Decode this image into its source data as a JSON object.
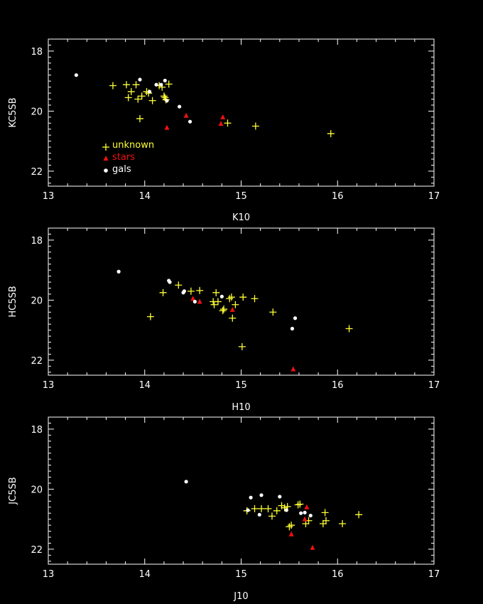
{
  "colors": {
    "background": "#000000",
    "axes": "#ffffff",
    "unknown": "#ffff33",
    "stars": "#ee1111",
    "gals": "#ffffff"
  },
  "legend": {
    "unknown": "unknown",
    "stars": "stars",
    "gals": "gals",
    "placement": "lower-left of top panel"
  },
  "chart_data": [
    {
      "type": "scatter",
      "xlabel": "K10",
      "ylabel": "KC5SB",
      "xlim": [
        13,
        17
      ],
      "ylim": [
        22.5,
        17.6
      ],
      "xticks": [
        "13",
        "14",
        "15",
        "16",
        "17"
      ],
      "yticks": [
        "18",
        "20",
        "22"
      ],
      "y_inverted": true,
      "grid": false,
      "series": [
        {
          "name": "unknown",
          "marker": "plus",
          "points": [
            [
              13.67,
              19.15
            ],
            [
              13.81,
              19.12
            ],
            [
              13.83,
              19.55
            ],
            [
              13.86,
              19.35
            ],
            [
              13.91,
              19.12
            ],
            [
              13.93,
              19.6
            ],
            [
              13.95,
              20.25
            ],
            [
              13.97,
              19.5
            ],
            [
              14.02,
              19.35
            ],
            [
              14.04,
              19.4
            ],
            [
              14.08,
              19.65
            ],
            [
              14.15,
              19.15
            ],
            [
              14.18,
              19.2
            ],
            [
              14.2,
              19.5
            ],
            [
              14.21,
              19.55
            ],
            [
              14.22,
              19.62
            ],
            [
              14.25,
              19.1
            ],
            [
              14.86,
              20.4
            ],
            [
              15.15,
              20.5
            ],
            [
              15.93,
              20.75
            ]
          ]
        },
        {
          "name": "stars",
          "marker": "triangle",
          "points": [
            [
              14.23,
              20.55
            ],
            [
              14.43,
              20.15
            ],
            [
              14.79,
              20.42
            ],
            [
              14.81,
              20.2
            ]
          ]
        },
        {
          "name": "gals",
          "marker": "dot",
          "points": [
            [
              13.29,
              18.8
            ],
            [
              13.95,
              18.95
            ],
            [
              14.05,
              19.35
            ],
            [
              14.12,
              19.12
            ],
            [
              14.17,
              19.12
            ],
            [
              14.21,
              18.98
            ],
            [
              14.23,
              19.65
            ],
            [
              14.36,
              19.85
            ],
            [
              14.47,
              20.35
            ]
          ]
        }
      ]
    },
    {
      "type": "scatter",
      "xlabel": "H10",
      "ylabel": "HC5SB",
      "xlim": [
        13,
        17
      ],
      "ylim": [
        22.5,
        17.6
      ],
      "xticks": [
        "13",
        "14",
        "15",
        "16",
        "17"
      ],
      "yticks": [
        "18",
        "20",
        "22"
      ],
      "y_inverted": true,
      "grid": false,
      "series": [
        {
          "name": "unknown",
          "marker": "plus",
          "points": [
            [
              14.06,
              20.55
            ],
            [
              14.19,
              19.75
            ],
            [
              14.35,
              19.5
            ],
            [
              14.48,
              19.7
            ],
            [
              14.57,
              19.68
            ],
            [
              14.71,
              20.05
            ],
            [
              14.72,
              20.15
            ],
            [
              14.74,
              19.75
            ],
            [
              14.76,
              20.05
            ],
            [
              14.81,
              20.35
            ],
            [
              14.82,
              20.3
            ],
            [
              14.88,
              19.95
            ],
            [
              14.9,
              19.9
            ],
            [
              14.91,
              20.6
            ],
            [
              14.94,
              20.15
            ],
            [
              15.02,
              19.9
            ],
            [
              15.01,
              21.55
            ],
            [
              15.14,
              19.95
            ],
            [
              15.33,
              20.4
            ],
            [
              16.12,
              20.95
            ]
          ]
        },
        {
          "name": "stars",
          "marker": "triangle",
          "points": [
            [
              14.5,
              19.95
            ],
            [
              14.57,
              20.05
            ],
            [
              14.91,
              20.32
            ],
            [
              15.54,
              22.3
            ]
          ]
        },
        {
          "name": "gals",
          "marker": "dot",
          "points": [
            [
              13.73,
              19.05
            ],
            [
              14.25,
              19.35
            ],
            [
              14.26,
              19.4
            ],
            [
              14.4,
              19.75
            ],
            [
              14.41,
              19.7
            ],
            [
              14.52,
              20.05
            ],
            [
              14.8,
              19.88
            ],
            [
              15.53,
              20.95
            ],
            [
              15.56,
              20.6
            ]
          ]
        }
      ]
    },
    {
      "type": "scatter",
      "xlabel": "J10",
      "ylabel": "JC5SB",
      "xlim": [
        13,
        17
      ],
      "ylim": [
        22.5,
        17.6
      ],
      "xticks": [
        "13",
        "14",
        "15",
        "16",
        "17"
      ],
      "yticks": [
        "18",
        "20",
        "22"
      ],
      "y_inverted": true,
      "grid": false,
      "series": [
        {
          "name": "unknown",
          "marker": "plus",
          "points": [
            [
              15.06,
              20.72
            ],
            [
              15.14,
              20.65
            ],
            [
              15.21,
              20.65
            ],
            [
              15.28,
              20.65
            ],
            [
              15.32,
              20.9
            ],
            [
              15.37,
              20.72
            ],
            [
              15.42,
              20.55
            ],
            [
              15.45,
              20.62
            ],
            [
              15.48,
              20.58
            ],
            [
              15.5,
              21.25
            ],
            [
              15.52,
              21.2
            ],
            [
              15.59,
              20.52
            ],
            [
              15.61,
              20.5
            ],
            [
              15.67,
              21.15
            ],
            [
              15.7,
              21.05
            ],
            [
              15.85,
              21.15
            ],
            [
              15.87,
              20.78
            ],
            [
              15.88,
              21.05
            ],
            [
              16.05,
              21.15
            ],
            [
              16.22,
              20.85
            ]
          ]
        },
        {
          "name": "stars",
          "marker": "triangle",
          "points": [
            [
              15.52,
              21.5
            ],
            [
              15.66,
              21.0
            ],
            [
              15.68,
              20.6
            ],
            [
              15.74,
              21.95
            ]
          ]
        },
        {
          "name": "gals",
          "marker": "dot",
          "points": [
            [
              14.43,
              19.75
            ],
            [
              15.07,
              20.7
            ],
            [
              15.1,
              20.28
            ],
            [
              15.19,
              20.85
            ],
            [
              15.21,
              20.2
            ],
            [
              15.4,
              20.25
            ],
            [
              15.47,
              20.7
            ],
            [
              15.62,
              20.8
            ],
            [
              15.66,
              20.78
            ],
            [
              15.72,
              20.88
            ]
          ]
        }
      ]
    }
  ]
}
